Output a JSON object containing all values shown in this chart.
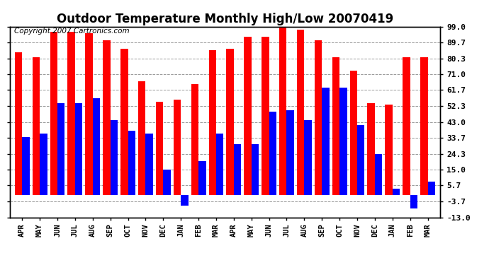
{
  "title": "Outdoor Temperature Monthly High/Low 20070419",
  "copyright": "Copyright 2007 Cartronics.com",
  "months": [
    "APR",
    "MAY",
    "JUN",
    "JUL",
    "AUG",
    "SEP",
    "OCT",
    "NOV",
    "DEC",
    "JAN",
    "FEB",
    "MAR",
    "APR",
    "MAY",
    "JUN",
    "JUL",
    "AUG",
    "SEP",
    "OCT",
    "NOV",
    "DEC",
    "JAN",
    "FEB",
    "MAR"
  ],
  "highs": [
    84,
    81,
    96,
    96,
    95,
    91,
    86,
    67,
    55,
    56,
    65,
    85,
    86,
    93,
    93,
    99,
    97,
    91,
    81,
    73,
    54,
    53,
    81,
    81
  ],
  "lows": [
    34,
    36,
    54,
    54,
    57,
    44,
    38,
    36,
    15,
    -6,
    20,
    36,
    30,
    30,
    49,
    50,
    44,
    63,
    63,
    41,
    24,
    4,
    -8,
    8
  ],
  "yticks": [
    -13.0,
    -3.7,
    5.7,
    15.0,
    24.3,
    33.7,
    43.0,
    52.3,
    61.7,
    71.0,
    80.3,
    89.7,
    99.0
  ],
  "ylim": [
    -13.0,
    99.0
  ],
  "high_color": "#ff0000",
  "low_color": "#0000ff",
  "bg_color": "#ffffff",
  "grid_color": "#999999",
  "title_fontsize": 12,
  "copyright_fontsize": 7.5
}
